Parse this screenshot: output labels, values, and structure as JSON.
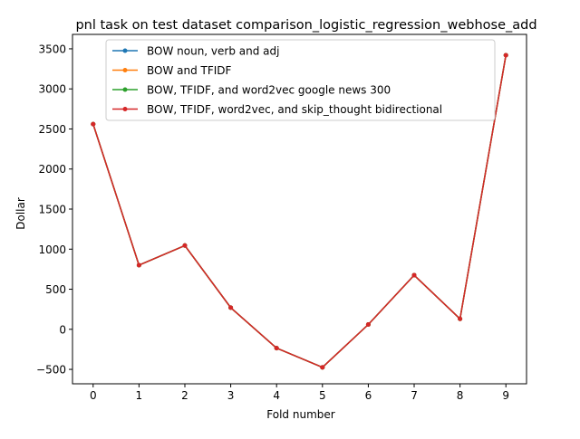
{
  "chart_data": {
    "type": "line",
    "title": "pnl task on test dataset comparison_logistic_regression_webhose_add",
    "xlabel": "Fold number",
    "ylabel": "Dollar",
    "x": [
      0,
      1,
      2,
      3,
      4,
      5,
      6,
      7,
      8,
      9
    ],
    "x_ticks": [
      "0",
      "1",
      "2",
      "3",
      "4",
      "5",
      "6",
      "7",
      "8",
      "9"
    ],
    "y_ticks": [
      "−500",
      "0",
      "500",
      "1000",
      "1500",
      "2000",
      "2500",
      "3000",
      "3500"
    ],
    "xlim": [
      -0.45,
      9.45
    ],
    "ylim": [
      -680,
      3680
    ],
    "grid": false,
    "legend_position": "upper-center",
    "series": [
      {
        "name": "BOW noun, verb and adj",
        "color": "#1f77b4",
        "values": [
          2560,
          800,
          1045,
          270,
          -235,
          -475,
          60,
          675,
          130,
          3420
        ]
      },
      {
        "name": "BOW and TFIDF",
        "color": "#ff7f0e",
        "values": [
          2560,
          800,
          1045,
          270,
          -235,
          -475,
          60,
          675,
          130,
          3420
        ]
      },
      {
        "name": "BOW, TFIDF, and word2vec google news 300",
        "color": "#2ca02c",
        "values": [
          2560,
          800,
          1045,
          270,
          -235,
          -475,
          60,
          675,
          130,
          3420
        ]
      },
      {
        "name": "BOW, TFIDF, word2vec, and skip_thought bidirectional",
        "color": "#d62728",
        "values": [
          2560,
          800,
          1045,
          270,
          -235,
          -475,
          60,
          675,
          130,
          3420
        ]
      }
    ]
  }
}
